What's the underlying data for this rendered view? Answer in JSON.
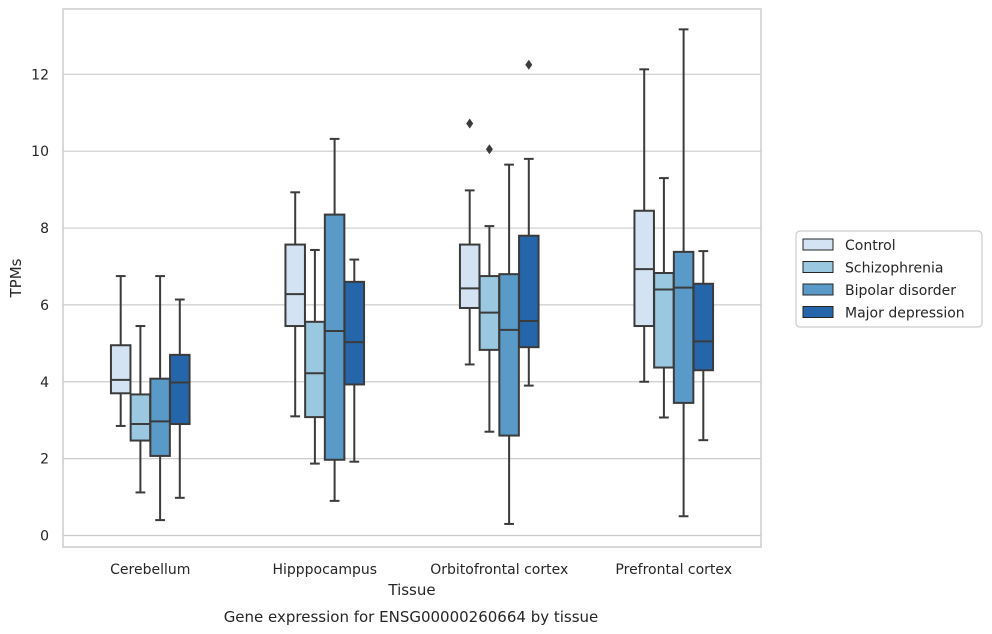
{
  "chart_data": {
    "type": "box",
    "xlabel": "Tissue",
    "ylabel": "TPMs",
    "caption": "Gene expression for ENSG00000260664 by tissue",
    "categories": [
      "Cerebellum",
      "Hipppocampus",
      "Orbitofrontal cortex",
      "Prefrontal cortex"
    ],
    "ylim": [
      -0.3,
      13.7
    ],
    "yticks": [
      0,
      2,
      4,
      6,
      8,
      10,
      12
    ],
    "grid": "horizontal",
    "legend_position": "right",
    "series": [
      {
        "name": "Control",
        "color": "#d3e3f3",
        "boxes": [
          {
            "whislo": 2.85,
            "q1": 3.7,
            "med": 4.05,
            "q3": 4.95,
            "whishi": 6.75,
            "fliers": []
          },
          {
            "whislo": 3.1,
            "q1": 5.45,
            "med": 6.28,
            "q3": 7.57,
            "whishi": 8.93,
            "fliers": []
          },
          {
            "whislo": 4.45,
            "q1": 5.92,
            "med": 6.43,
            "q3": 7.57,
            "whishi": 8.98,
            "fliers": [
              10.72
            ]
          },
          {
            "whislo": 4.0,
            "q1": 5.45,
            "med": 6.93,
            "q3": 8.45,
            "whishi": 12.13,
            "fliers": []
          }
        ]
      },
      {
        "name": "Schizophrenia",
        "color": "#9ac8e0",
        "boxes": [
          {
            "whislo": 1.12,
            "q1": 2.47,
            "med": 2.9,
            "q3": 3.67,
            "whishi": 5.45,
            "fliers": []
          },
          {
            "whislo": 1.87,
            "q1": 3.08,
            "med": 4.22,
            "q3": 5.56,
            "whishi": 7.43,
            "fliers": []
          },
          {
            "whislo": 2.7,
            "q1": 4.83,
            "med": 5.8,
            "q3": 6.75,
            "whishi": 8.05,
            "fliers": [
              10.05
            ]
          },
          {
            "whislo": 3.07,
            "q1": 4.37,
            "med": 6.4,
            "q3": 6.83,
            "whishi": 9.3,
            "fliers": []
          }
        ]
      },
      {
        "name": "Bipolar disorder",
        "color": "#5a9ac8",
        "boxes": [
          {
            "whislo": 0.4,
            "q1": 2.07,
            "med": 2.97,
            "q3": 4.08,
            "whishi": 6.75,
            "fliers": []
          },
          {
            "whislo": 0.9,
            "q1": 1.97,
            "med": 5.32,
            "q3": 8.35,
            "whishi": 10.32,
            "fliers": []
          },
          {
            "whislo": 0.3,
            "q1": 2.6,
            "med": 5.35,
            "q3": 6.8,
            "whishi": 9.65,
            "fliers": []
          },
          {
            "whislo": 0.5,
            "q1": 3.45,
            "med": 6.45,
            "q3": 7.38,
            "whishi": 13.17,
            "fliers": []
          }
        ]
      },
      {
        "name": "Major depression",
        "color": "#2565a9",
        "boxes": [
          {
            "whislo": 0.98,
            "q1": 2.9,
            "med": 3.98,
            "q3": 4.7,
            "whishi": 6.14,
            "fliers": []
          },
          {
            "whislo": 1.92,
            "q1": 3.93,
            "med": 5.03,
            "q3": 6.6,
            "whishi": 7.18,
            "fliers": []
          },
          {
            "whislo": 3.9,
            "q1": 4.9,
            "med": 5.58,
            "q3": 7.8,
            "whishi": 9.8,
            "fliers": [
              12.25
            ]
          },
          {
            "whislo": 2.48,
            "q1": 4.3,
            "med": 5.05,
            "q3": 6.55,
            "whishi": 7.4,
            "fliers": []
          }
        ]
      }
    ]
  }
}
